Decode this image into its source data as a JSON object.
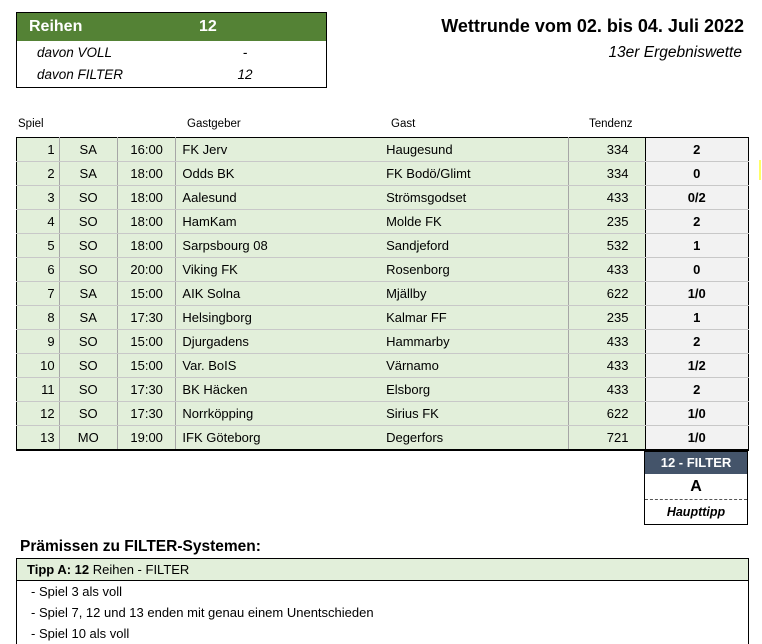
{
  "summary": {
    "reihen_label": "Reihen",
    "reihen_value": "12",
    "voll_label": "davon VOLL",
    "voll_value": "-",
    "filter_label": "davon FILTER",
    "filter_value": "12"
  },
  "header": {
    "title": "Wettrunde vom 02. bis 04. Juli 2022",
    "subtitle": "13er Ergebniswette"
  },
  "columns": {
    "spiel": "Spiel",
    "gastgeber": "Gastgeber",
    "gast": "Gast",
    "tendenz": "Tendenz"
  },
  "matches": [
    {
      "nr": "1",
      "day": "SA",
      "time": "16:00",
      "home": "FK Jerv",
      "away": "Haugesund",
      "tendenz": "334",
      "tip": "2"
    },
    {
      "nr": "2",
      "day": "SA",
      "time": "18:00",
      "home": "Odds BK",
      "away": "FK Bodö/Glimt",
      "tendenz": "334",
      "tip": "0"
    },
    {
      "nr": "3",
      "day": "SO",
      "time": "18:00",
      "home": "Aalesund",
      "away": "Strömsgodset",
      "tendenz": "433",
      "tip": "0/2"
    },
    {
      "nr": "4",
      "day": "SO",
      "time": "18:00",
      "home": "HamKam",
      "away": "Molde FK",
      "tendenz": "235",
      "tip": "2"
    },
    {
      "nr": "5",
      "day": "SO",
      "time": "18:00",
      "home": "Sarpsbourg 08",
      "away": "Sandjeford",
      "tendenz": "532",
      "tip": "1"
    },
    {
      "nr": "6",
      "day": "SO",
      "time": "20:00",
      "home": "Viking FK",
      "away": "Rosenborg",
      "tendenz": "433",
      "tip": "0"
    },
    {
      "nr": "7",
      "day": "SA",
      "time": "15:00",
      "home": "AIK Solna",
      "away": "Mjällby",
      "tendenz": "622",
      "tip": "1/0"
    },
    {
      "nr": "8",
      "day": "SA",
      "time": "17:30",
      "home": "Helsingborg",
      "away": "Kalmar FF",
      "tendenz": "235",
      "tip": "1"
    },
    {
      "nr": "9",
      "day": "SO",
      "time": "15:00",
      "home": "Djurgadens",
      "away": "Hammarby",
      "tendenz": "433",
      "tip": "2"
    },
    {
      "nr": "10",
      "day": "SO",
      "time": "15:00",
      "home": "Var. BoIS",
      "away": "Värnamo",
      "tendenz": "433",
      "tip": "1/2"
    },
    {
      "nr": "11",
      "day": "SO",
      "time": "17:30",
      "home": "BK Häcken",
      "away": "Elsborg",
      "tendenz": "433",
      "tip": "2"
    },
    {
      "nr": "12",
      "day": "SO",
      "time": "17:30",
      "home": "Norrköpping",
      "away": "Sirius FK",
      "tendenz": "622",
      "tip": "1/0"
    },
    {
      "nr": "13",
      "day": "MO",
      "time": "19:00",
      "home": "IFK Göteborg",
      "away": "Degerfors",
      "tendenz": "721",
      "tip": "1/0"
    }
  ],
  "filter": {
    "header": "12 - FILTER",
    "letter": "A",
    "label": "Haupttipp"
  },
  "premises": {
    "title": "Prämissen zu FILTER-Systemen:",
    "tipp_label": "Tipp A:",
    "tipp_count": "12",
    "tipp_rest": " Reihen - FILTER",
    "items": [
      "- Spiel 3 als voll",
      "- Spiel 7, 12 und 13 enden mit genau einem Unentschieden",
      "- Spiel 10 als voll"
    ]
  },
  "colors": {
    "green_header": "#548235",
    "row_green": "#e2efda",
    "filter_header": "#44546a"
  }
}
